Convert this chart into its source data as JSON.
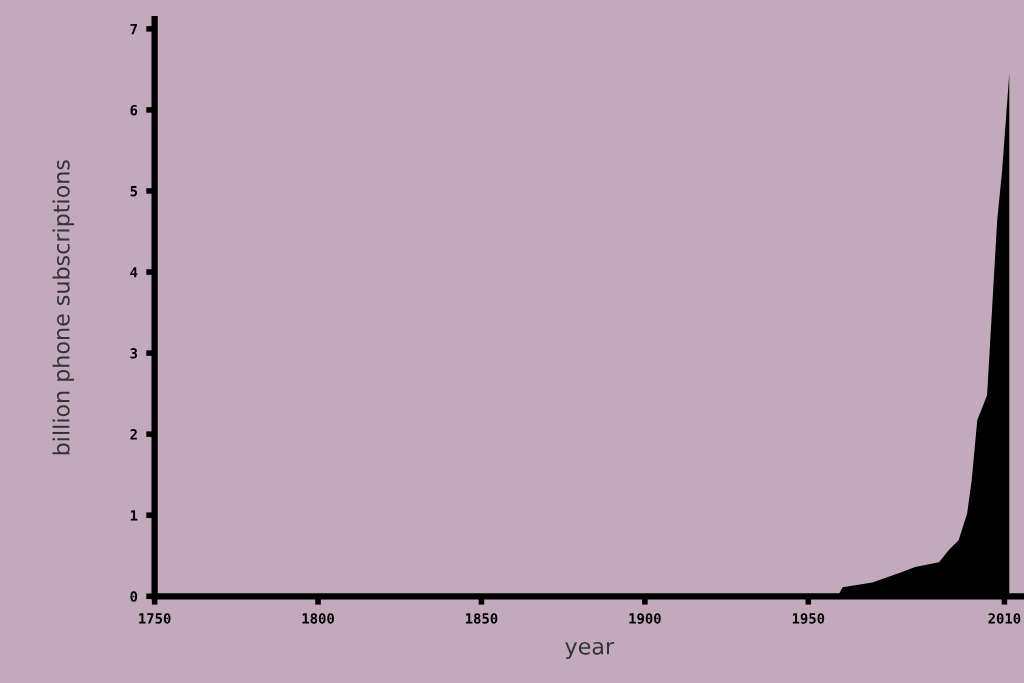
{
  "chart_data": {
    "type": "area",
    "xlabel": "year",
    "ylabel": "billion phone subscriptions",
    "x": [
      1959,
      1960.5,
      1969.6,
      1978.7,
      1982.7,
      1990,
      1993,
      1996,
      1998.6,
      2000,
      2001.7,
      2004.7,
      2007.8,
      2009.3,
      2011.5,
      2011.5
    ],
    "values": [
      0,
      0.11,
      0.17,
      0.3,
      0.36,
      0.42,
      0.57,
      0.69,
      1.02,
      1.43,
      2.17,
      2.48,
      4.64,
      5.25,
      6.45,
      0
    ],
    "color": "#000000",
    "xlim": [
      1750,
      2016
    ],
    "xticks": [
      1750,
      1800,
      1850,
      1900,
      1950,
      2010
    ],
    "ylim": [
      0,
      7.12
    ],
    "yticks": [
      0,
      1,
      2,
      3,
      4,
      5,
      6,
      7
    ],
    "grid": false,
    "legend": false
  }
}
